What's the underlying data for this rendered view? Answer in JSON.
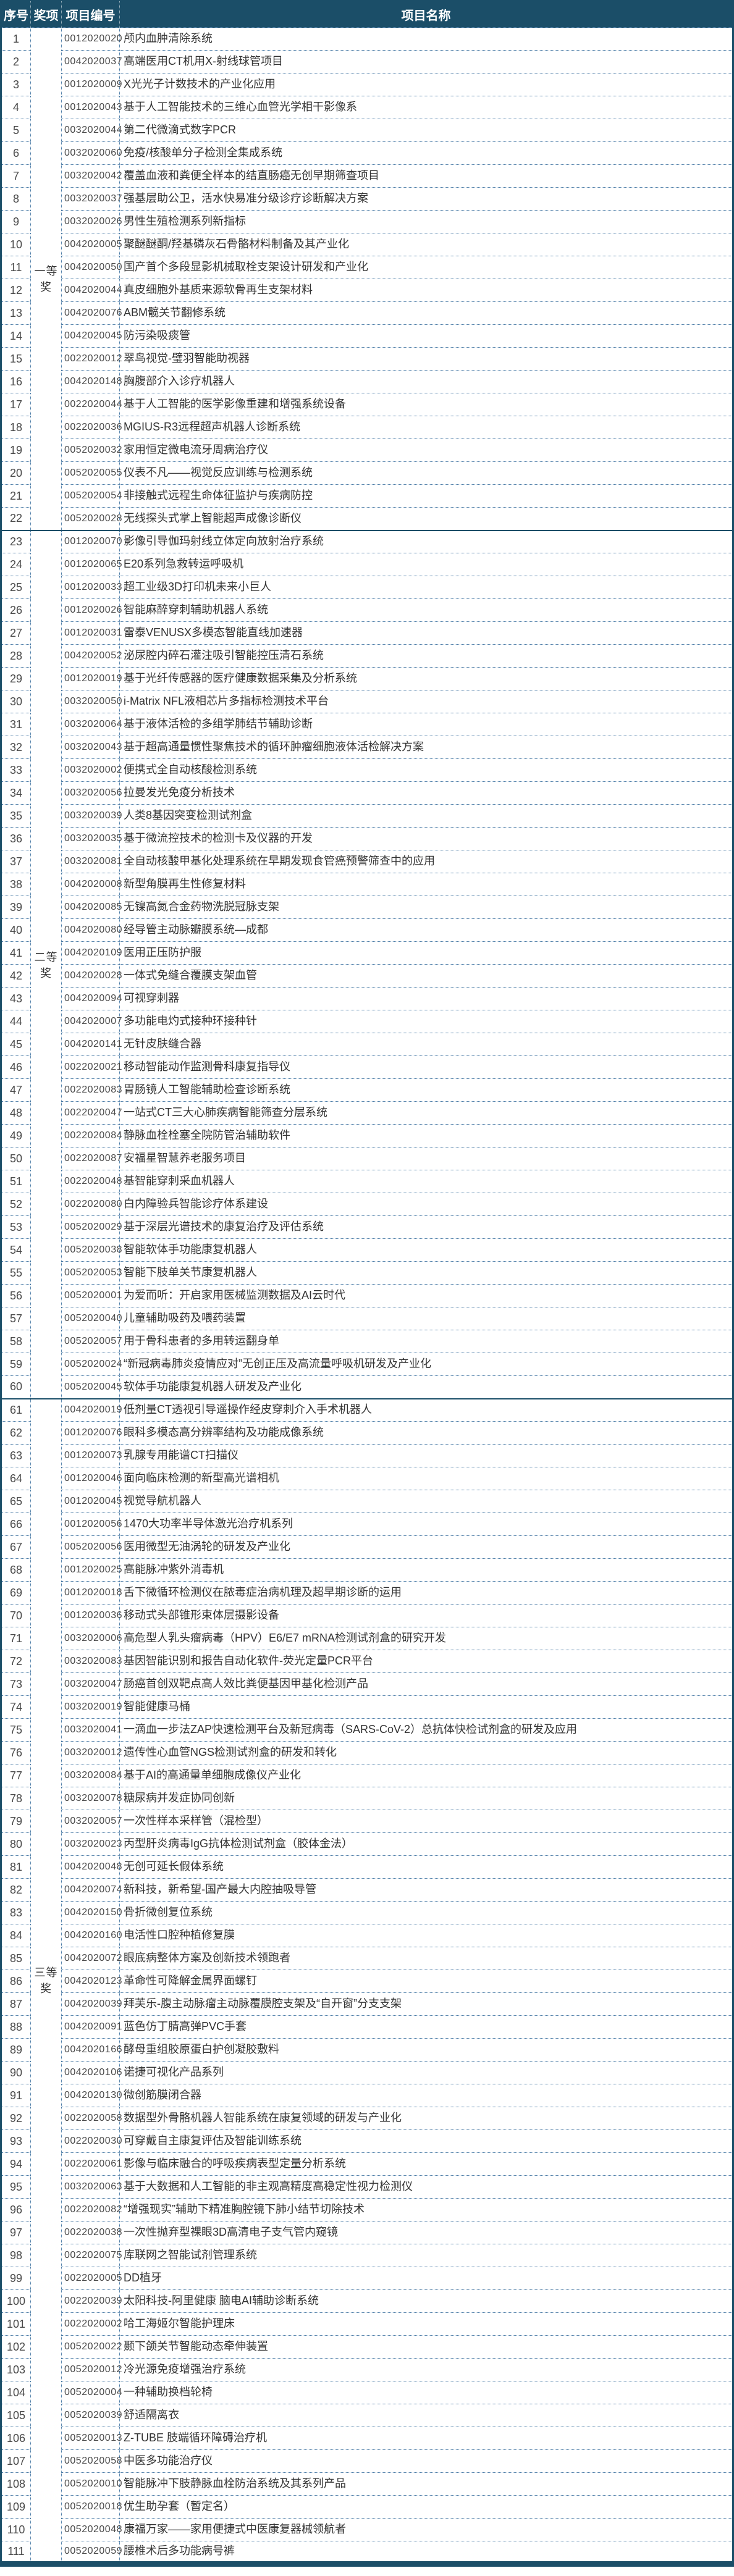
{
  "header": {
    "columns": [
      "序号",
      "奖项",
      "项目编号",
      "项目名称"
    ]
  },
  "groups": [
    {
      "award": "一等奖",
      "start": 1,
      "end": 22
    },
    {
      "award": "二等奖",
      "start": 23,
      "end": 60
    },
    {
      "award": "三等奖",
      "start": 61,
      "end": 111
    }
  ],
  "rows": [
    {
      "no": "1",
      "code": "0012020020",
      "name": "颅内血肿清除系统"
    },
    {
      "no": "2",
      "code": "0042020037",
      "name": "高端医用CT机用X-射线球管项目"
    },
    {
      "no": "3",
      "code": "0012020009",
      "name": "X光光子计数技术的产业化应用"
    },
    {
      "no": "4",
      "code": "0012020043",
      "name": "基于人工智能技术的三维心血管光学相干影像系"
    },
    {
      "no": "5",
      "code": "0032020044",
      "name": "第二代微滴式数字PCR"
    },
    {
      "no": "6",
      "code": "0032020060",
      "name": "免疫/核酸单分子检测全集成系统"
    },
    {
      "no": "7",
      "code": "0032020042",
      "name": "覆盖血液和粪便全样本的结直肠癌无创早期筛查项目"
    },
    {
      "no": "8",
      "code": "0032020037",
      "name": "强基层助公卫，活水快易准分级诊疗诊断解决方案"
    },
    {
      "no": "9",
      "code": "0032020026",
      "name": "男性生殖检测系列新指标"
    },
    {
      "no": "10",
      "code": "0042020005",
      "name": "聚醚醚酮/羟基磷灰石骨骼材料制备及其产业化"
    },
    {
      "no": "11",
      "code": "0042020050",
      "name": "国产首个多段显影机械取栓支架设计研发和产业化"
    },
    {
      "no": "12",
      "code": "0042020044",
      "name": "真皮细胞外基质来源软骨再生支架材料"
    },
    {
      "no": "13",
      "code": "0042020076",
      "name": "ABM髋关节翻修系统"
    },
    {
      "no": "14",
      "code": "0042020045",
      "name": "防污染吸痰管"
    },
    {
      "no": "15",
      "code": "0022020012",
      "name": "翠鸟视觉-璧羽智能助视器"
    },
    {
      "no": "16",
      "code": "0042020148",
      "name": "胸腹部介入诊疗机器人"
    },
    {
      "no": "17",
      "code": "0022020044",
      "name": "基于人工智能的医学影像重建和增强系统设备"
    },
    {
      "no": "18",
      "code": "0022020036",
      "name": "MGIUS-R3远程超声机器人诊断系统"
    },
    {
      "no": "19",
      "code": "0052020032",
      "name": "家用恒定微电流牙周病治疗仪"
    },
    {
      "no": "20",
      "code": "0052020055",
      "name": "仪表不凡——视觉反应训练与检测系统"
    },
    {
      "no": "21",
      "code": "0052020054",
      "name": "非接触式远程生命体征监护与疾病防控"
    },
    {
      "no": "22",
      "code": "0052020028",
      "name": "无线探头式掌上智能超声成像诊断仪"
    },
    {
      "no": "23",
      "code": "0012020070",
      "name": "影像引导伽玛射线立体定向放射治疗系统"
    },
    {
      "no": "24",
      "code": "0012020065",
      "name": "E20系列急救转运呼吸机"
    },
    {
      "no": "25",
      "code": "0012020033",
      "name": "超工业级3D打印机未来小巨人"
    },
    {
      "no": "26",
      "code": "0012020026",
      "name": "智能麻醉穿刺辅助机器人系统"
    },
    {
      "no": "27",
      "code": "0012020031",
      "name": "雷泰VENUSX多模态智能直线加速器"
    },
    {
      "no": "28",
      "code": "0042020052",
      "name": "泌尿腔内碎石灌注吸引智能控压清石系统"
    },
    {
      "no": "29",
      "code": "0012020019",
      "name": "基于光纤传感器的医疗健康数据采集及分析系统"
    },
    {
      "no": "30",
      "code": "0032020050",
      "name": "i-Matrix NFL液相芯片多指标检测技术平台"
    },
    {
      "no": "31",
      "code": "0032020064",
      "name": "基于液体活检的多组学肺结节辅助诊断"
    },
    {
      "no": "32",
      "code": "0032020043",
      "name": "基于超高通量惯性聚焦技术的循环肿瘤细胞液体活检解决方案"
    },
    {
      "no": "33",
      "code": "0032020002",
      "name": "便携式全自动核酸检测系统"
    },
    {
      "no": "34",
      "code": "0032020056",
      "name": "拉曼发光免疫分析技术"
    },
    {
      "no": "35",
      "code": "0032020039",
      "name": "人类8基因突变检测试剂盒"
    },
    {
      "no": "36",
      "code": "0032020035",
      "name": "基于微流控技术的检测卡及仪器的开发"
    },
    {
      "no": "37",
      "code": "0032020081",
      "name": "全自动核酸甲基化处理系统在早期发现食管癌预警筛查中的应用"
    },
    {
      "no": "38",
      "code": "0042020008",
      "name": "新型角膜再生性修复材料"
    },
    {
      "no": "39",
      "code": "0042020085",
      "name": "无镍高氮合金药物洗脱冠脉支架"
    },
    {
      "no": "40",
      "code": "0042020080",
      "name": "经导管主动脉瓣膜系统—成都"
    },
    {
      "no": "41",
      "code": "0042020109",
      "name": "医用正压防护服"
    },
    {
      "no": "42",
      "code": "0042020028",
      "name": "一体式免缝合覆膜支架血管"
    },
    {
      "no": "43",
      "code": "0042020094",
      "name": "可视穿刺器"
    },
    {
      "no": "44",
      "code": "0042020007",
      "name": "多功能电灼式接种环接种针"
    },
    {
      "no": "45",
      "code": "0042020141",
      "name": "无针皮肤缝合器"
    },
    {
      "no": "46",
      "code": "0022020021",
      "name": "移动智能动作监测骨科康复指导仪"
    },
    {
      "no": "47",
      "code": "0022020083",
      "name": "胃肠镜人工智能辅助检查诊断系统"
    },
    {
      "no": "48",
      "code": "0022020047",
      "name": "一站式CT三大心肺疾病智能筛查分层系统"
    },
    {
      "no": "49",
      "code": "0022020084",
      "name": "静脉血栓栓塞全院防管治辅助软件"
    },
    {
      "no": "50",
      "code": "0022020087",
      "name": "安福星智慧养老服务项目"
    },
    {
      "no": "51",
      "code": "0022020048",
      "name": "基智能穿刺采血机器人"
    },
    {
      "no": "52",
      "code": "0022020080",
      "name": "白内障验兵智能诊疗体系建设"
    },
    {
      "no": "53",
      "code": "0052020029",
      "name": "基于深层光谱技术的康复治疗及评估系统"
    },
    {
      "no": "54",
      "code": "0052020038",
      "name": "智能软体手功能康复机器人"
    },
    {
      "no": "55",
      "code": "0052020053",
      "name": "智能下肢单关节康复机器人"
    },
    {
      "no": "56",
      "code": "0052020001",
      "name": "为爱而听：开启家用医械监测数据及AI云时代"
    },
    {
      "no": "57",
      "code": "0052020040",
      "name": "儿童辅助吸药及喂药装置"
    },
    {
      "no": "58",
      "code": "0052020057",
      "name": "用于骨科患者的多用转运翻身单"
    },
    {
      "no": "59",
      "code": "0052020024",
      "name": "“新冠病毒肺炎疫情应对”无创正压及高流量呼吸机研发及产业化"
    },
    {
      "no": "60",
      "code": "0052020045",
      "name": "软体手功能康复机器人研发及产业化"
    },
    {
      "no": "61",
      "code": "0042020019",
      "name": "低剂量CT透视引导遥操作经皮穿刺介入手术机器人"
    },
    {
      "no": "62",
      "code": "0012020076",
      "name": "眼科多模态高分辨率结构及功能成像系统"
    },
    {
      "no": "63",
      "code": "0012020073",
      "name": "乳腺专用能谱CT扫描仪"
    },
    {
      "no": "64",
      "code": "0012020046",
      "name": "面向临床检测的新型高光谱相机"
    },
    {
      "no": "65",
      "code": "0012020045",
      "name": "视觉导航机器人"
    },
    {
      "no": "66",
      "code": "0012020056",
      "name": "1470大功率半导体激光治疗机系列"
    },
    {
      "no": "67",
      "code": "0052020056",
      "name": "医用微型无油涡轮的研发及产业化"
    },
    {
      "no": "68",
      "code": "0012020025",
      "name": "高能脉冲紫外消毒机"
    },
    {
      "no": "69",
      "code": "0012020018",
      "name": "舌下微循环检测仪在脓毒症治病机理及超早期诊断的运用"
    },
    {
      "no": "70",
      "code": "0012020036",
      "name": "移动式头部锥形束体层摄影设备"
    },
    {
      "no": "71",
      "code": "0032020006",
      "name": "高危型人乳头瘤病毒（HPV）E6/E7 mRNA检测试剂盒的研究开发"
    },
    {
      "no": "72",
      "code": "0032020083",
      "name": "基因智能识别和报告自动化软件-荧光定量PCR平台"
    },
    {
      "no": "73",
      "code": "0032020047",
      "name": "肠癌首创双靶点高人效比粪便基因甲基化检测产品"
    },
    {
      "no": "74",
      "code": "0032020019",
      "name": "智能健康马桶"
    },
    {
      "no": "75",
      "code": "0032020041",
      "name": "一滴血一步法ZAP快速检测平台及新冠病毒（SARS-CoV-2）总抗体快检试剂盒的研发及应用"
    },
    {
      "no": "76",
      "code": "0032020012",
      "name": "遗传性心血管NGS检测试剂盒的研发和转化"
    },
    {
      "no": "77",
      "code": "0032020084",
      "name": "基于AI的高通量单细胞成像仪产业化"
    },
    {
      "no": "78",
      "code": "0032020078",
      "name": "糖尿病并发症协同创新"
    },
    {
      "no": "79",
      "code": "0032020057",
      "name": "一次性样本采样管（混检型）"
    },
    {
      "no": "80",
      "code": "0032020023",
      "name": "丙型肝炎病毒IgG抗体检测试剂盒（胶体金法）"
    },
    {
      "no": "81",
      "code": "0042020048",
      "name": "无创可延长假体系统"
    },
    {
      "no": "82",
      "code": "0042020074",
      "name": "新科技，新希望-国产最大内腔抽吸导管"
    },
    {
      "no": "83",
      "code": "0042020150",
      "name": "骨折微创复位系统"
    },
    {
      "no": "84",
      "code": "0042020160",
      "name": "电活性口腔种植修复膜"
    },
    {
      "no": "85",
      "code": "0042020072",
      "name": "眼底病整体方案及创新技术领跑者"
    },
    {
      "no": "86",
      "code": "0042020123",
      "name": "革命性可降解金属界面螺钉"
    },
    {
      "no": "87",
      "code": "0042020039",
      "name": "拜芙乐-腹主动脉瘤主动脉覆膜腔支架及“自开窗”分支支架"
    },
    {
      "no": "88",
      "code": "0042020091",
      "name": "蓝色仿丁腈高弹PVC手套"
    },
    {
      "no": "89",
      "code": "0042020166",
      "name": "酵母重组胶原蛋白护创凝胶敷料"
    },
    {
      "no": "90",
      "code": "0042020106",
      "name": "诺捷可视化产品系列"
    },
    {
      "no": "91",
      "code": "0042020130",
      "name": "微创筋膜闭合器"
    },
    {
      "no": "92",
      "code": "0022020058",
      "name": "数据型外骨骼机器人智能系统在康复领域的研发与产业化"
    },
    {
      "no": "93",
      "code": "0022020030",
      "name": "可穿戴自主康复评估及智能训练系统"
    },
    {
      "no": "94",
      "code": "0022020061",
      "name": "影像与临床融合的呼吸疾病表型定量分析系统"
    },
    {
      "no": "95",
      "code": "0032020063",
      "name": "基于大数据和人工智能的非主观高精度高稳定性视力检测仪"
    },
    {
      "no": "96",
      "code": "0022020082",
      "name": "“增强现实”辅助下精准胸腔镜下肺小结节切除技术"
    },
    {
      "no": "97",
      "code": "0022020038",
      "name": "一次性抛弃型裸眼3D高清电子支气管内窥镜"
    },
    {
      "no": "98",
      "code": "0022020075",
      "name": "库联网之智能试剂管理系统"
    },
    {
      "no": "99",
      "code": "0022020005",
      "name": "DD植牙"
    },
    {
      "no": "100",
      "code": "0022020039",
      "name": "太阳科技-阿里健康 脑电AI辅助诊断系统"
    },
    {
      "no": "101",
      "code": "0022020002",
      "name": "哈工海姬尔智能护理床"
    },
    {
      "no": "102",
      "code": "0052020022",
      "name": "颞下颌关节智能动态牵伸装置"
    },
    {
      "no": "103",
      "code": "0052020012",
      "name": "冷光源免疫增强治疗系统"
    },
    {
      "no": "104",
      "code": "0052020004",
      "name": "一种辅助换档轮椅"
    },
    {
      "no": "105",
      "code": "0052020039",
      "name": "舒适隔离衣"
    },
    {
      "no": "106",
      "code": "0052020013",
      "name": "Z-TUBE 肢端循环障碍治疗机"
    },
    {
      "no": "107",
      "code": "0052020058",
      "name": "中医多功能治疗仪"
    },
    {
      "no": "108",
      "code": "0052020010",
      "name": "智能脉冲下肢静脉血栓防治系统及其系列产品"
    },
    {
      "no": "109",
      "code": "0052020018",
      "name": "优生助孕套（暂定名）"
    },
    {
      "no": "110",
      "code": "0052020048",
      "name": "康福万家——家用便捷式中医康复器械领航者"
    },
    {
      "no": "111",
      "code": "0052020059",
      "name": "腰椎术后多功能病号裤"
    }
  ]
}
